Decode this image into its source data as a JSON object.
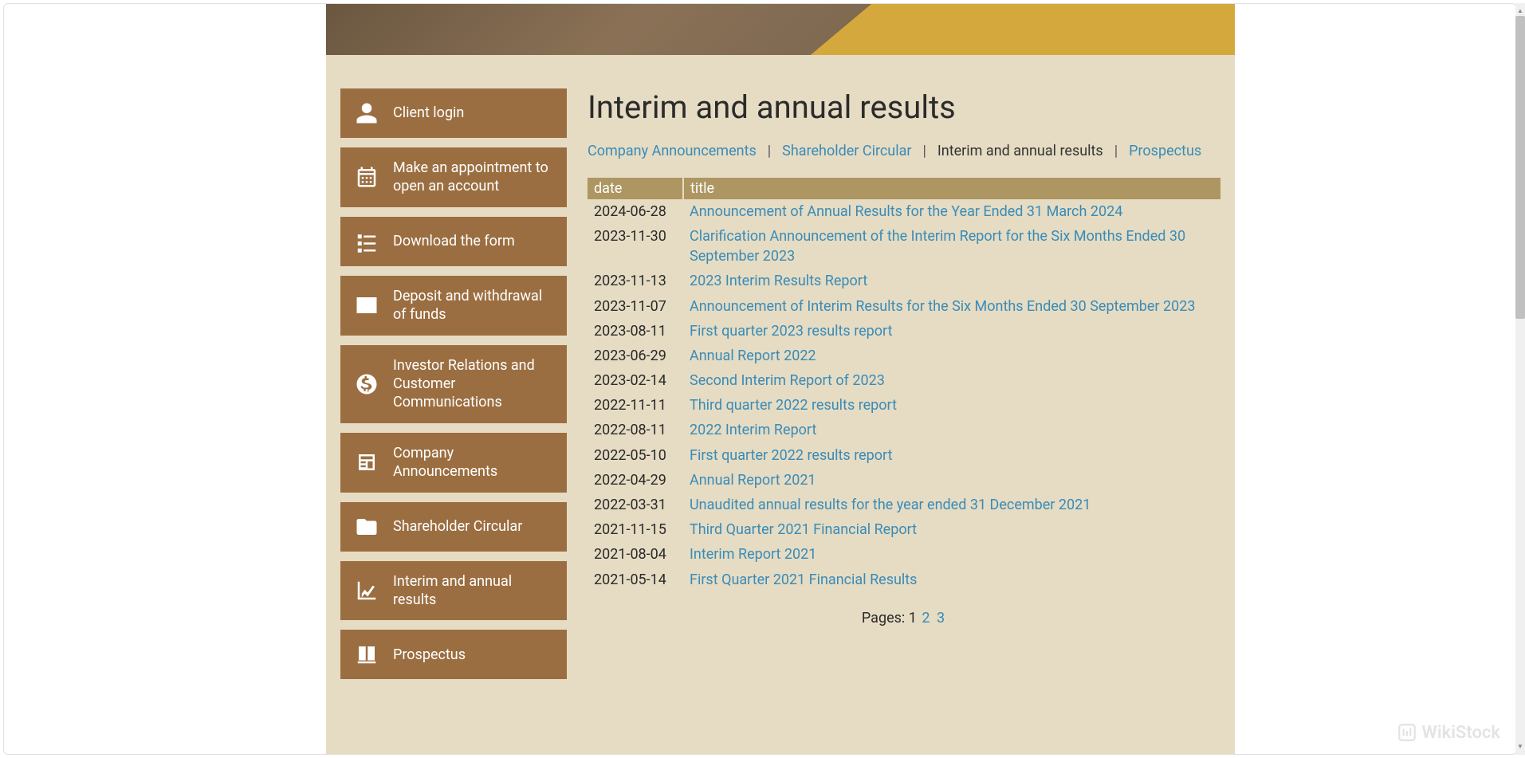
{
  "colors": {
    "sidebar_bg": "#9b6e41",
    "sidebar_text": "#ffffff",
    "page_bg": "#e5dcc3",
    "link_color": "#3a8bb8",
    "table_header_bg": "#ad9662",
    "text_color": "#2b2b2b",
    "banner_gold": "#d4a83c"
  },
  "page": {
    "title": "Interim and annual results"
  },
  "sidebar": {
    "items": [
      {
        "label": "Client login",
        "icon": "user"
      },
      {
        "label": "Make an appointment to open an account",
        "icon": "calendar"
      },
      {
        "label": "Download the form",
        "icon": "form"
      },
      {
        "label": "Deposit and withdrawal of funds",
        "icon": "envelope"
      },
      {
        "label": "Investor Relations and Customer Communications",
        "icon": "dollar"
      },
      {
        "label": "Company Announcements",
        "icon": "news"
      },
      {
        "label": "Shareholder Circular",
        "icon": "folder"
      },
      {
        "label": "Interim and annual results",
        "icon": "chart"
      },
      {
        "label": "Prospectus",
        "icon": "book"
      }
    ]
  },
  "breadcrumb": {
    "items": [
      {
        "label": "Company Announcements",
        "active": false
      },
      {
        "label": "Shareholder Circular",
        "active": false
      },
      {
        "label": "Interim and annual results",
        "active": true
      },
      {
        "label": "Prospectus",
        "active": false
      }
    ]
  },
  "table": {
    "headers": {
      "date": "date",
      "title": "title"
    },
    "rows": [
      {
        "date": "2024-06-28",
        "title": "Announcement of Annual Results for the Year Ended 31 March 2024"
      },
      {
        "date": "2023-11-30",
        "title": "Clarification Announcement of the Interim Report for the Six Months Ended 30 September 2023"
      },
      {
        "date": "2023-11-13",
        "title": "2023 Interim Results Report"
      },
      {
        "date": "2023-11-07",
        "title": "Announcement of Interim Results for the Six Months Ended 30 September 2023"
      },
      {
        "date": "2023-08-11",
        "title": "First quarter 2023 results report"
      },
      {
        "date": "2023-06-29",
        "title": "Annual Report 2022"
      },
      {
        "date": "2023-02-14",
        "title": "Second Interim Report of 2023"
      },
      {
        "date": "2022-11-11",
        "title": "Third quarter 2022 results report"
      },
      {
        "date": "2022-08-11",
        "title": "2022 Interim Report"
      },
      {
        "date": "2022-05-10",
        "title": "First quarter 2022 results report"
      },
      {
        "date": "2022-04-29",
        "title": "Annual Report 2021"
      },
      {
        "date": "2022-03-31",
        "title": "Unaudited annual results for the year ended 31 December 2021"
      },
      {
        "date": "2021-11-15",
        "title": "Third Quarter 2021 Financial Report"
      },
      {
        "date": "2021-08-04",
        "title": "Interim Report 2021"
      },
      {
        "date": "2021-05-14",
        "title": "First Quarter 2021 Financial Results"
      }
    ]
  },
  "pagination": {
    "label": "Pages:",
    "current": "1",
    "others": [
      "2",
      "3"
    ]
  },
  "watermark": {
    "text": "WikiStock"
  }
}
